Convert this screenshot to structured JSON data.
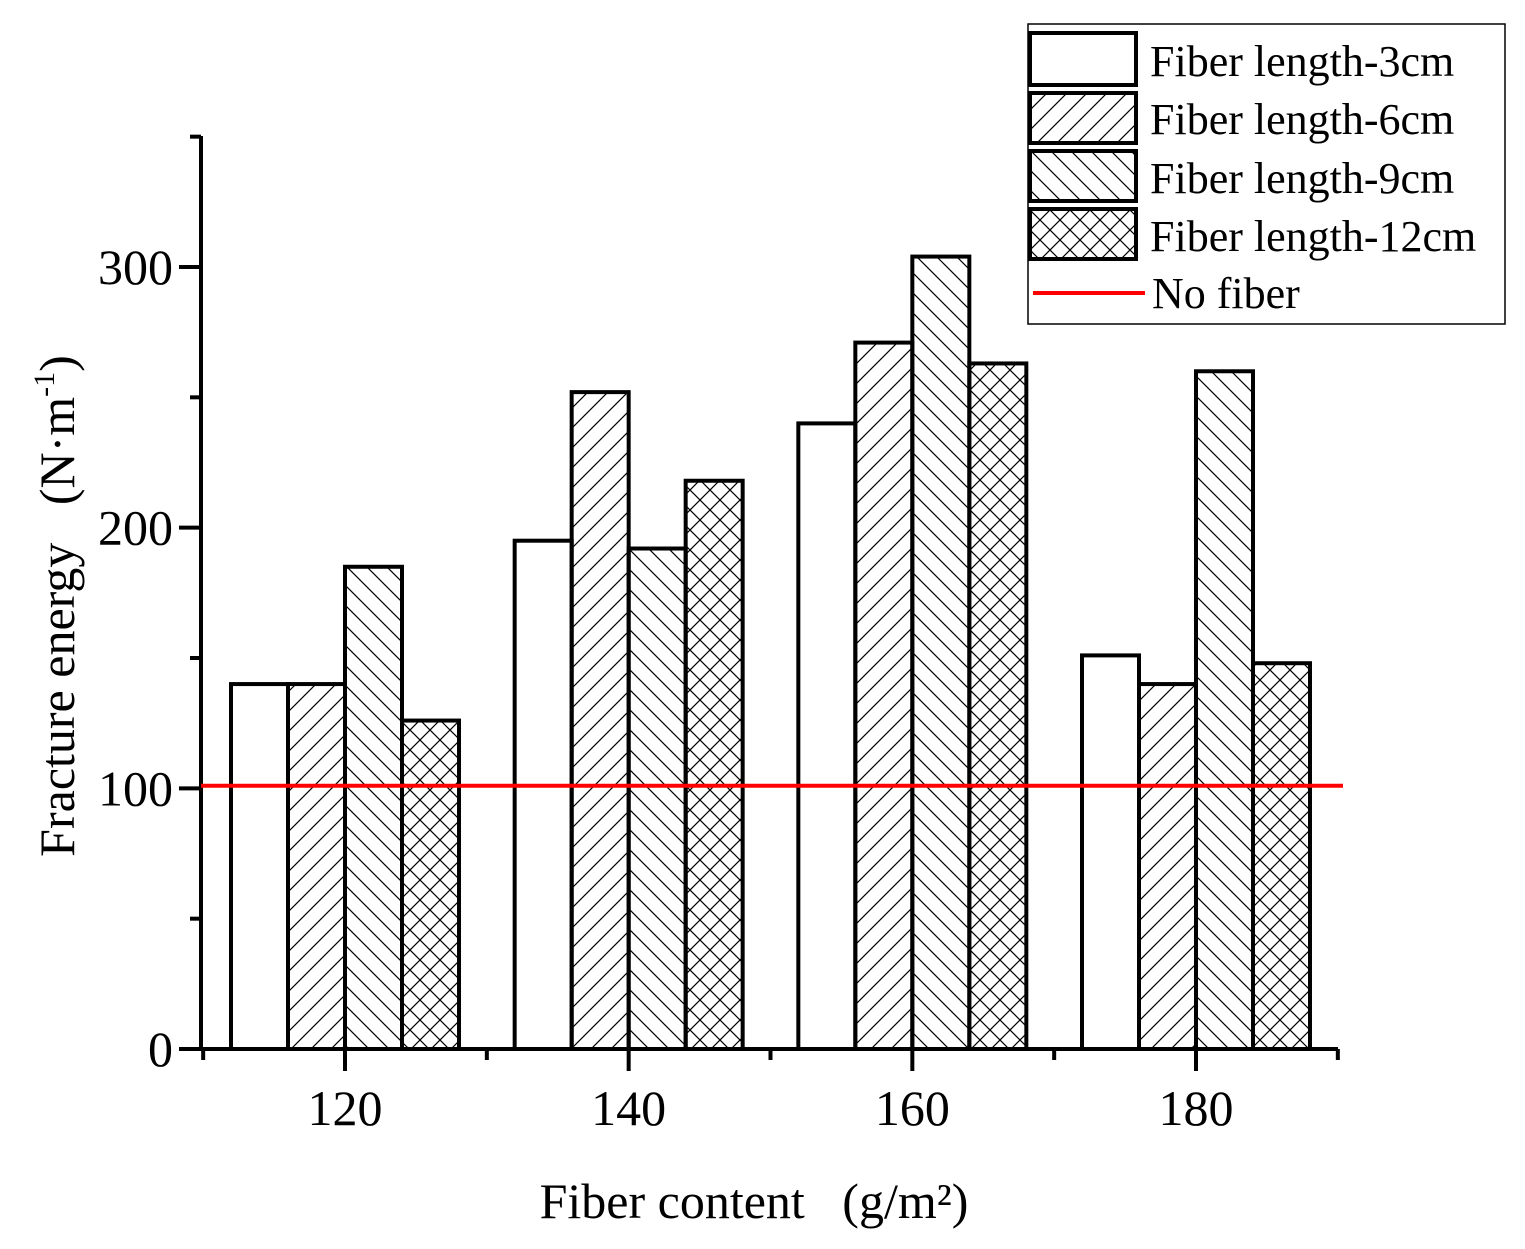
{
  "chart_data": {
    "type": "bar",
    "xlabel": "Fiber content   (g/m²)",
    "ylabel": "Fracture energy   (N·m",
    "ylabel_superscript": "-1",
    "ylabel_close": ")",
    "x_ticks": [
      120,
      140,
      160,
      180
    ],
    "y_ticks": [
      0,
      100,
      200,
      300
    ],
    "xlim": [
      110,
      190
    ],
    "ylim": [
      0,
      350
    ],
    "categories": [
      120,
      140,
      160,
      180
    ],
    "series": [
      {
        "name": "Fiber length-3cm",
        "values": [
          140,
          195,
          240,
          151
        ],
        "pattern": "none"
      },
      {
        "name": "Fiber length-6cm",
        "values": [
          140,
          252,
          271,
          140
        ],
        "pattern": "forward-diagonal"
      },
      {
        "name": "Fiber length-9cm",
        "values": [
          185,
          192,
          304,
          260
        ],
        "pattern": "backward-diagonal"
      },
      {
        "name": "Fiber length-12cm",
        "values": [
          126,
          218,
          263,
          148
        ],
        "pattern": "crosshatch"
      }
    ],
    "reference_line": {
      "name": "No fiber",
      "value": 101,
      "color": "#ff0000"
    },
    "legend_position": "top-right",
    "grid": false,
    "colors": {
      "bar_stroke": "#000000",
      "bar_fill": "#ffffff",
      "axis": "#000000"
    }
  }
}
